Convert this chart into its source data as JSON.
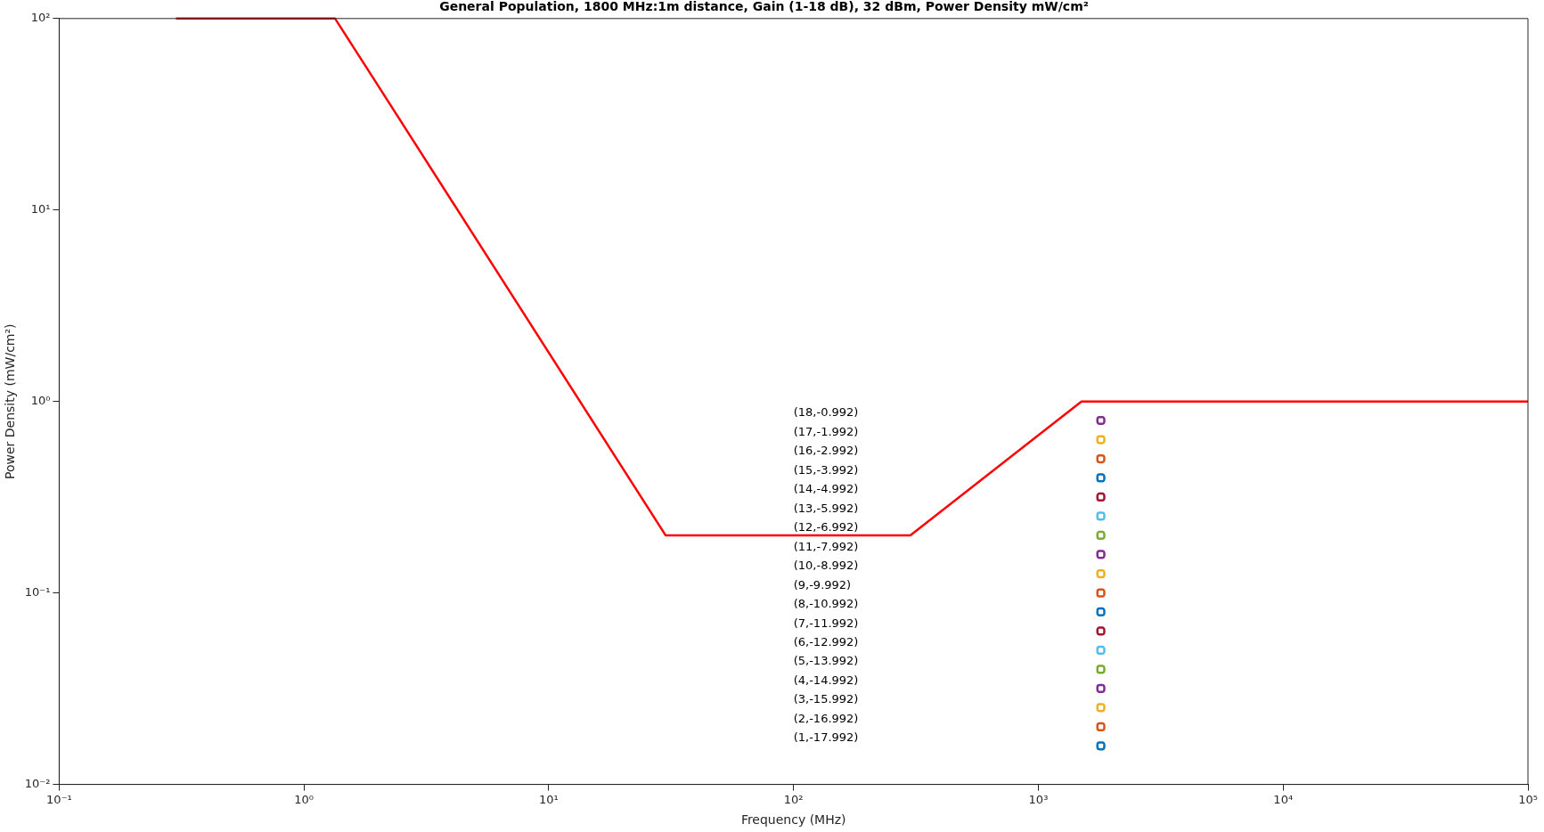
{
  "chart_data": {
    "type": "line",
    "title": "General Population, 1800 MHz:1m distance, Gain (1-18 dB), 32 dBm, Power Density mW/cm²",
    "xlabel": "Frequency (MHz)",
    "ylabel": "Power Density (mW/cm²)",
    "log": "xy",
    "grid": false,
    "legend": false,
    "xlim": [
      0.1,
      100000
    ],
    "ylim": [
      0.01,
      100
    ],
    "xticks": [
      {
        "value": 0.1,
        "label": "10⁻¹"
      },
      {
        "value": 1,
        "label": "10⁰"
      },
      {
        "value": 10,
        "label": "10¹"
      },
      {
        "value": 100,
        "label": "10²"
      },
      {
        "value": 1000,
        "label": "10³"
      },
      {
        "value": 10000,
        "label": "10⁴"
      },
      {
        "value": 100000,
        "label": "10⁵"
      }
    ],
    "yticks": [
      {
        "value": 0.01,
        "label": "10⁻²"
      },
      {
        "value": 0.1,
        "label": "10⁻¹"
      },
      {
        "value": 1,
        "label": "10⁰"
      },
      {
        "value": 10,
        "label": "10¹"
      },
      {
        "value": 100,
        "label": "10²"
      }
    ],
    "series": [
      {
        "color": "#ff0000",
        "marker": "none",
        "x": [
          0.3,
          1.34,
          2,
          30,
          300,
          1500,
          100000
        ],
        "values": [
          100,
          100,
          45,
          0.2,
          0.2,
          1,
          1
        ]
      },
      {
        "type": "scatter",
        "marker": "square",
        "x": [
          1800,
          1800,
          1800,
          1800,
          1800,
          1800,
          1800,
          1800,
          1800,
          1800,
          1800,
          1800,
          1800,
          1800,
          1800,
          1800,
          1800,
          1800
        ],
        "values": [
          0.0159,
          0.02,
          0.0252,
          0.0317,
          0.0399,
          0.0502,
          0.0632,
          0.0796,
          0.1,
          0.126,
          0.159,
          0.2,
          0.252,
          0.317,
          0.399,
          0.502,
          0.632,
          0.796
        ],
        "colors": [
          "#0072bd",
          "#d95319",
          "#edb120",
          "#7e2f8e",
          "#77ac30",
          "#4dbeee",
          "#a2142f",
          "#0072bd",
          "#d95319",
          "#edb120",
          "#7e2f8e",
          "#77ac30",
          "#4dbeee",
          "#a2142f",
          "#0072bd",
          "#d95319",
          "#edb120",
          "#7e2f8e"
        ]
      }
    ],
    "annotations": [
      "(1,-17.992)",
      "(2,-16.992)",
      "(3,-15.992)",
      "(4,-14.992)",
      "(5,-13.992)",
      "(6,-12.992)",
      "(7,-11.992)",
      "(8,-10.992)",
      "(9,-9.992)",
      "(10,-8.992)",
      "(11,-7.992)",
      "(12,-6.992)",
      "(13,-5.992)",
      "(14,-4.992)",
      "(15,-3.992)",
      "(16,-2.992)",
      "(17,-1.992)",
      "(18,-0.992)"
    ]
  }
}
